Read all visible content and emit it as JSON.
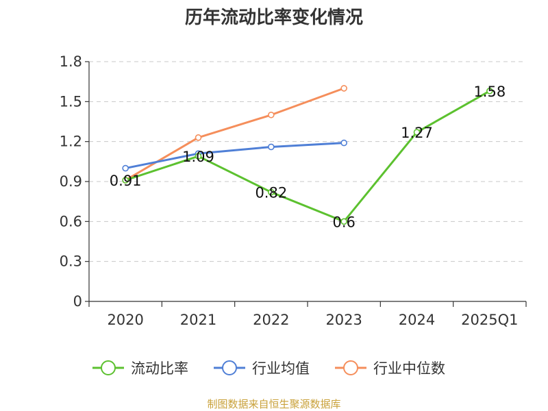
{
  "chart_data": {
    "type": "line",
    "title": "历年流动比率变化情况",
    "categories": [
      "2020",
      "2021",
      "2022",
      "2023",
      "2024",
      "2025Q1"
    ],
    "ylim": [
      0,
      1.8
    ],
    "yticks": [
      "0",
      "0.3",
      "0.6",
      "0.9",
      "1.2",
      "1.5",
      "1.8"
    ],
    "grid": true,
    "legend_position": "bottom",
    "series": [
      {
        "name": "流动比率",
        "color": "#5cc12f",
        "values": [
          0.91,
          1.09,
          0.82,
          0.6,
          1.27,
          1.58
        ],
        "labels": [
          "0.91",
          "1.09",
          "0.82",
          "0.6",
          "1.27",
          "1.58"
        ],
        "show_labels": true
      },
      {
        "name": "行业均值",
        "color": "#4f7fd6",
        "values": [
          1.0,
          1.11,
          1.16,
          1.19,
          null,
          null
        ],
        "show_labels": false
      },
      {
        "name": "行业中位数",
        "color": "#f58e5b",
        "values": [
          0.91,
          1.23,
          1.4,
          1.6,
          null,
          null
        ],
        "show_labels": false
      }
    ]
  },
  "footer": {
    "source": "制图数据来自恒生聚源数据库"
  }
}
